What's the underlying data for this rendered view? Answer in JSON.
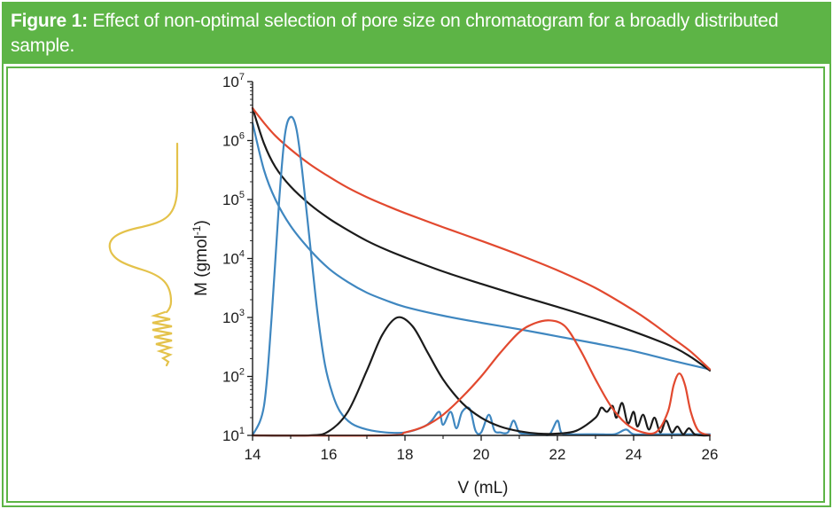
{
  "figure": {
    "label": "Figure 1:",
    "text": "Effect of non-optimal selection of pore size on chromatogram for a broadly distributed sample."
  },
  "colors": {
    "accent": "#5db446",
    "sample_gold": "#e4c24a",
    "blue": "#3f87c0",
    "black": "#1b1b1b",
    "red": "#e2492f"
  },
  "chart_data": {
    "type": "line",
    "xlabel": "V (mL)",
    "ylabel": {
      "main": "M (gmol",
      "sup": "-1",
      "close": ")"
    },
    "xlim": [
      14,
      26
    ],
    "ylim_log10": [
      1,
      7
    ],
    "x_ticks": [
      {
        "value": 14,
        "label": "14"
      },
      {
        "value": 16,
        "label": "16"
      },
      {
        "value": 18,
        "label": "18"
      },
      {
        "value": 20,
        "label": "20"
      },
      {
        "value": 22,
        "label": "22"
      },
      {
        "value": 24,
        "label": "24"
      },
      {
        "value": 26,
        "label": "26"
      }
    ],
    "y_ticks": [
      {
        "exp": 1,
        "base": "10",
        "sup": "1"
      },
      {
        "exp": 2,
        "base": "10",
        "sup": "2"
      },
      {
        "exp": 3,
        "base": "10",
        "sup": "3"
      },
      {
        "exp": 4,
        "base": "10",
        "sup": "4"
      },
      {
        "exp": 5,
        "base": "10",
        "sup": "5"
      },
      {
        "exp": 6,
        "base": "10",
        "sup": "6"
      },
      {
        "exp": 7,
        "base": "10",
        "sup": "7"
      }
    ],
    "calibration_curves": [
      {
        "name": "blue calibration",
        "color": "#3f87c0",
        "x": [
          14,
          14.3,
          14.6,
          15,
          15.5,
          16,
          16.5,
          17,
          17.5,
          18,
          19,
          20,
          21,
          22,
          23,
          24,
          25,
          26
        ],
        "log_m": [
          6.3,
          5.5,
          5.0,
          4.55,
          4.15,
          3.83,
          3.6,
          3.42,
          3.29,
          3.18,
          3.03,
          2.91,
          2.8,
          2.68,
          2.56,
          2.43,
          2.27,
          2.12
        ]
      },
      {
        "name": "black calibration",
        "color": "#1b1b1b",
        "x": [
          14,
          14.3,
          14.6,
          15,
          15.5,
          16,
          16.5,
          17,
          17.5,
          18,
          19,
          20,
          21,
          22,
          23,
          24,
          25,
          25.5,
          26
        ],
        "log_m": [
          6.55,
          5.95,
          5.55,
          5.22,
          4.92,
          4.68,
          4.48,
          4.3,
          4.15,
          4.02,
          3.78,
          3.57,
          3.37,
          3.18,
          2.98,
          2.76,
          2.51,
          2.33,
          2.1
        ]
      },
      {
        "name": "red calibration",
        "color": "#e2492f",
        "x": [
          14,
          14.3,
          14.6,
          15,
          15.5,
          16,
          16.5,
          17,
          17.5,
          18,
          19,
          20,
          21,
          22,
          23,
          24,
          24.5,
          25,
          25.5,
          26
        ],
        "log_m": [
          6.55,
          6.3,
          6.08,
          5.85,
          5.6,
          5.39,
          5.2,
          5.04,
          4.9,
          4.77,
          4.53,
          4.3,
          4.06,
          3.8,
          3.5,
          3.12,
          2.9,
          2.66,
          2.42,
          2.12
        ]
      }
    ],
    "chromatograms": [
      {
        "name": "blue chromatogram",
        "color": "#3f87c0",
        "x": [
          14,
          14.3,
          14.5,
          14.7,
          14.85,
          15.0,
          15.15,
          15.3,
          15.5,
          15.7,
          15.9,
          16.1,
          16.3,
          16.6,
          17.0,
          17.5,
          18.0,
          18.5,
          18.7,
          18.9,
          19.0,
          19.2,
          19.35,
          19.5,
          19.7,
          19.85,
          20.0,
          20.2,
          20.35,
          20.5,
          20.7,
          20.85,
          21.0,
          21.2,
          21.4,
          21.6,
          21.8,
          22.0,
          22.1,
          22.3,
          23.0,
          23.5,
          23.8,
          24.0,
          24.5,
          25.0,
          26.0
        ],
        "log_m": [
          1.0,
          1.5,
          3.0,
          5.0,
          6.1,
          6.4,
          6.2,
          5.5,
          4.3,
          3.1,
          2.2,
          1.7,
          1.4,
          1.2,
          1.1,
          1.05,
          1.05,
          1.15,
          1.25,
          1.4,
          1.18,
          1.4,
          1.12,
          1.4,
          1.45,
          1.08,
          1.05,
          1.35,
          1.08,
          1.05,
          1.05,
          1.25,
          1.05,
          1.03,
          1.02,
          1.02,
          1.02,
          1.25,
          1.05,
          1.02,
          1.02,
          1.02,
          1.1,
          1.02,
          1.02,
          1.02,
          1.02
        ]
      },
      {
        "name": "black chromatogram",
        "color": "#1b1b1b",
        "x": [
          14,
          15.5,
          16.0,
          16.5,
          17.0,
          17.4,
          17.8,
          18.2,
          18.6,
          19.0,
          19.5,
          20.0,
          20.5,
          21.0,
          21.5,
          22.0,
          22.5,
          23.0,
          23.15,
          23.3,
          23.45,
          23.55,
          23.7,
          23.85,
          24.0,
          24.1,
          24.25,
          24.4,
          24.55,
          24.7,
          24.85,
          25.0,
          25.15,
          25.3,
          25.45,
          25.6,
          25.8,
          26.0
        ],
        "log_m": [
          1.0,
          1.0,
          1.07,
          1.4,
          2.1,
          2.7,
          3.0,
          2.85,
          2.4,
          1.95,
          1.55,
          1.3,
          1.15,
          1.07,
          1.03,
          1.03,
          1.08,
          1.3,
          1.47,
          1.4,
          1.5,
          1.3,
          1.55,
          1.2,
          1.4,
          1.15,
          1.35,
          1.1,
          1.3,
          1.05,
          1.25,
          1.05,
          1.15,
          1.02,
          1.12,
          1.02,
          1.0,
          1.0
        ]
      },
      {
        "name": "red chromatogram",
        "color": "#e2492f",
        "x": [
          14,
          17.5,
          18.0,
          18.5,
          19.0,
          19.5,
          20.0,
          20.5,
          21.0,
          21.4,
          21.8,
          22.2,
          22.6,
          23.0,
          23.4,
          23.8,
          24.2,
          24.6,
          24.9,
          25.05,
          25.2,
          25.35,
          25.5,
          25.7,
          26.0
        ],
        "log_m": [
          1.0,
          1.0,
          1.05,
          1.15,
          1.35,
          1.65,
          2.0,
          2.4,
          2.75,
          2.9,
          2.95,
          2.85,
          2.45,
          1.95,
          1.5,
          1.2,
          1.06,
          1.06,
          1.4,
          1.85,
          2.05,
          1.85,
          1.4,
          1.08,
          1.0
        ]
      }
    ]
  }
}
